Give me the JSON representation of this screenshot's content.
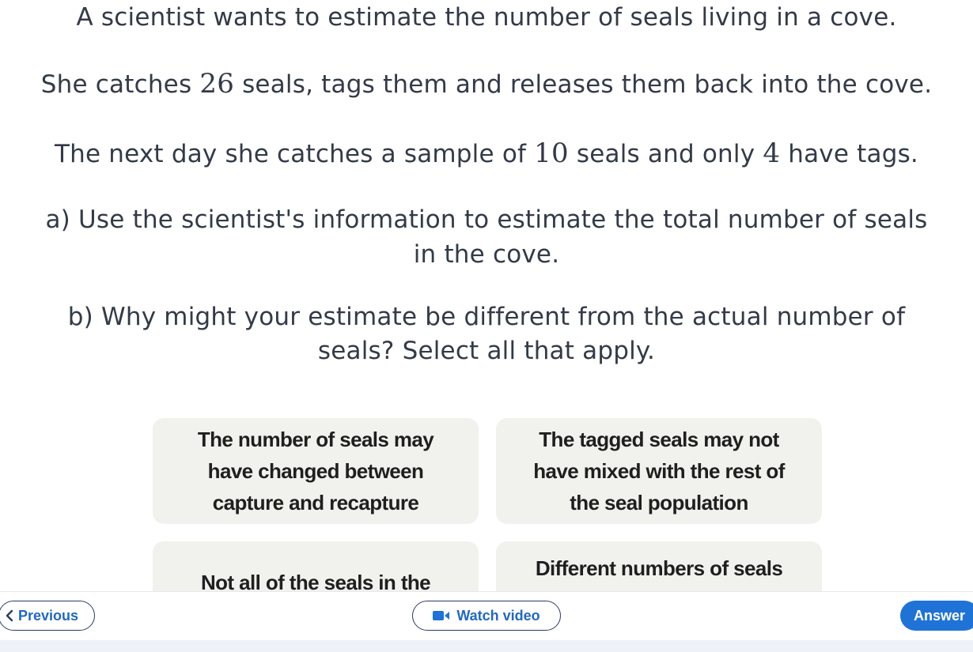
{
  "question": {
    "line1": "A scientist wants to estimate the number of seals living in a cove.",
    "line2_pre": "She catches ",
    "line2_num": "26",
    "line2_post": " seals, tags them and releases them back into the cove.",
    "line3_pre": "The next day she catches a sample of ",
    "line3_num1": "10",
    "line3_mid": " seals and only ",
    "line3_num2": "4",
    "line3_post": " have tags.",
    "part_a_line1": "a) Use the scientist's information to estimate the total number of seals",
    "part_a_line2": "in the cove.",
    "part_b_line1": "b) Why might your estimate be different from the actual number of",
    "part_b_line2": "seals? Select all that apply."
  },
  "options": [
    {
      "label": "The number of seals may have changed between capture and recapture"
    },
    {
      "label": "The tagged seals may not have mixed with the rest of the seal population"
    },
    {
      "label": "Not all of the seals in the"
    },
    {
      "label": "Different numbers of seals"
    }
  ],
  "footer": {
    "previous_label": "Previous",
    "watch_label": "Watch video",
    "answer_label": "Answer"
  },
  "colors": {
    "primary": "#1f73d6",
    "option_bg": "#f1f1ed",
    "text": "#333a48"
  }
}
